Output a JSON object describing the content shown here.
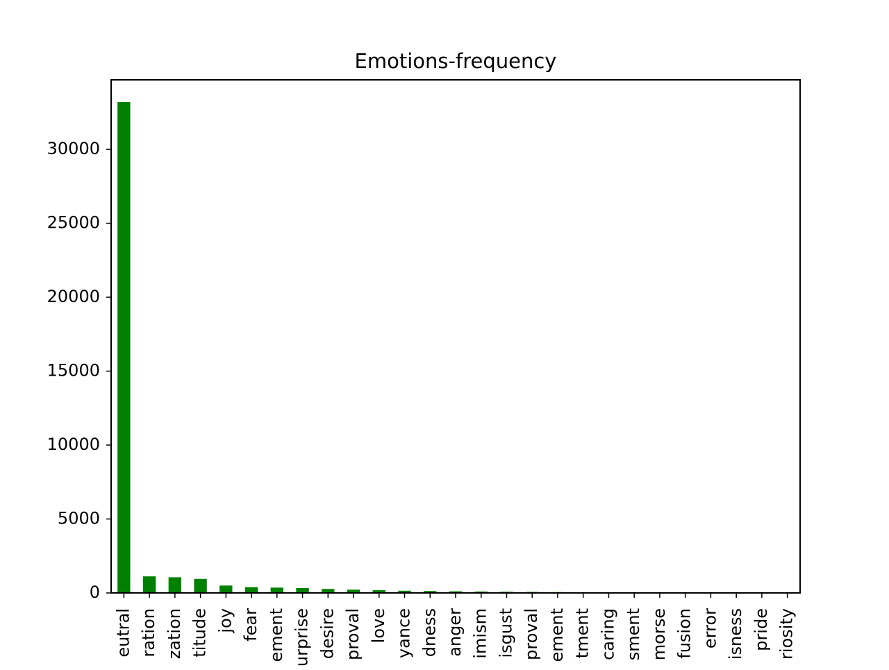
{
  "chart_data": {
    "type": "bar",
    "title": "Emotions-frequency",
    "xlabel": "",
    "ylabel": "",
    "ylim": [
      0,
      34700
    ],
    "y_ticks": [
      0,
      5000,
      10000,
      15000,
      20000,
      25000,
      30000
    ],
    "grid": false,
    "legend": "none",
    "bar_color": "#008000",
    "categories": [
      "eutral",
      "ration",
      "zation",
      "titude",
      "joy",
      "fear",
      "ement",
      "urprise",
      "desire",
      "proval",
      "love",
      "yance",
      "dness",
      "anger",
      "imism",
      "isgust",
      "proval",
      "ement",
      "tment",
      "caring",
      "sment",
      "morse",
      "fusion",
      "error",
      "isness",
      "pride",
      "riosity"
    ],
    "values": [
      33200,
      1120,
      1060,
      950,
      500,
      390,
      360,
      330,
      270,
      220,
      185,
      150,
      130,
      110,
      95,
      80,
      70,
      60,
      40,
      30,
      25,
      20,
      15,
      10,
      8,
      5,
      3
    ]
  }
}
